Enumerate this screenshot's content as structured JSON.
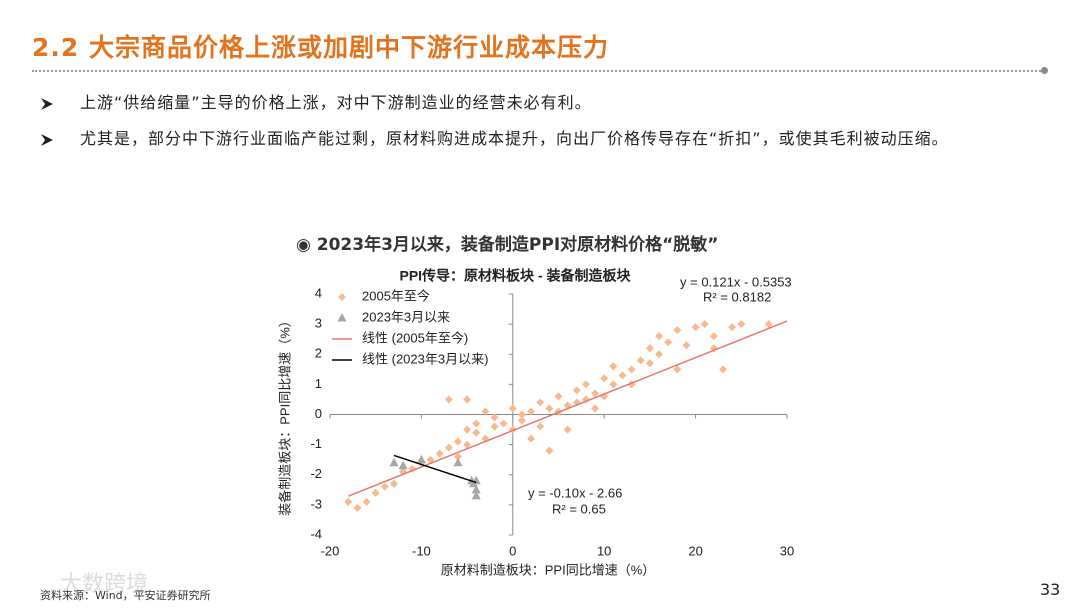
{
  "header": {
    "title": "2.2 大宗商品价格上涨或加剧中下游行业成本压力"
  },
  "bullets": [
    "上游“供给缩量”主导的价格上涨，对中下游制造业的经营未必有利。",
    "尤其是，部分中下游行业面临产能过剩，原材料购进成本提升，向出厂价格传导存在“折扣”，或使其毛利被动压缩。"
  ],
  "chart_caption": "◉ 2023年3月以来，装备制造PPI对原材料价格“脱敏”",
  "chart_data": {
    "type": "scatter",
    "title": "PPI传导：原材料板块 - 装备制造板块",
    "x_label": "原材料制造板块：PPI同比增速（%）",
    "y_label": "装备制造板块：PPI同比增速（%）",
    "xlim": [
      -20,
      30
    ],
    "xticks": [
      -20,
      -10,
      0,
      10,
      20,
      30
    ],
    "ylim": [
      -4,
      4
    ],
    "yticks": [
      -4,
      -3,
      -2,
      -1,
      0,
      1,
      2,
      3,
      4
    ],
    "grid": false,
    "legend": "upper left",
    "series": [
      {
        "name": "2005年至今",
        "type": "scatter",
        "marker": "diamond",
        "color": "#f7b98f",
        "x": [
          -18,
          -17,
          -16,
          -15,
          -14,
          -13,
          -12,
          -11,
          -10,
          -9,
          -8,
          -7,
          -7,
          -6,
          -6,
          -5,
          -5,
          -4,
          -4,
          -3,
          -3,
          -2,
          -2,
          -1,
          0,
          0,
          1,
          1,
          2,
          3,
          3,
          4,
          4,
          5,
          5,
          6,
          6,
          7,
          7,
          8,
          8,
          9,
          9,
          10,
          10,
          11,
          11,
          12,
          13,
          13,
          14,
          15,
          15,
          16,
          16,
          17,
          18,
          18,
          19,
          20,
          21,
          22,
          22,
          23,
          24,
          25,
          28,
          -5,
          2
        ],
        "values": [
          -2.9,
          -3.1,
          -2.9,
          -2.6,
          -2.4,
          -2.3,
          -1.9,
          -1.8,
          -1.6,
          -1.5,
          -1.3,
          -1.1,
          0.5,
          -1.4,
          -0.9,
          -1.0,
          -0.5,
          -0.6,
          -0.3,
          -0.8,
          0.1,
          -0.4,
          -0.1,
          -0.3,
          -0.5,
          0.2,
          0,
          -0.2,
          0.1,
          -0.4,
          0.4,
          0.2,
          -1.2,
          0.6,
          0.1,
          0.3,
          -0.5,
          0.8,
          0.4,
          0.5,
          1.0,
          0.7,
          0.2,
          0.6,
          1.2,
          1.0,
          1.6,
          1.3,
          1.5,
          1.0,
          1.8,
          1.7,
          2.2,
          2.0,
          2.6,
          2.4,
          2.8,
          1.5,
          2.3,
          2.9,
          3.0,
          2.6,
          2.2,
          1.5,
          2.9,
          3.0,
          3.0,
          0.5,
          -0.8
        ]
      },
      {
        "name": "2023年3月以来",
        "type": "scatter",
        "marker": "triangle",
        "color": "#a6a6a6",
        "x": [
          -13,
          -12,
          -10,
          -6,
          -4.5,
          -4.3,
          -4,
          -4,
          -4
        ],
        "values": [
          -1.6,
          -1.7,
          -1.5,
          -1.6,
          -2.2,
          -2.3,
          -2.5,
          -2.7,
          -2.2
        ]
      },
      {
        "name": "线性 (2005年至今)",
        "type": "line",
        "color": "#e8766b",
        "x": [
          -18,
          30
        ],
        "values": [
          -2.71,
          3.1
        ]
      },
      {
        "name": "线性 (2023年3月以来)",
        "type": "line",
        "color": "#000000",
        "x": [
          -13,
          -4
        ],
        "values": [
          -1.36,
          -2.26
        ]
      }
    ],
    "annotations": [
      "y = 0.121x - 0.5353",
      "R² = 0.8182",
      "y = -0.10x - 2.66",
      "R² = 0.65"
    ]
  },
  "footer": {
    "source": "资料来源：Wind，平安证券研究所",
    "page": "33",
    "watermark": "大数跨境"
  }
}
